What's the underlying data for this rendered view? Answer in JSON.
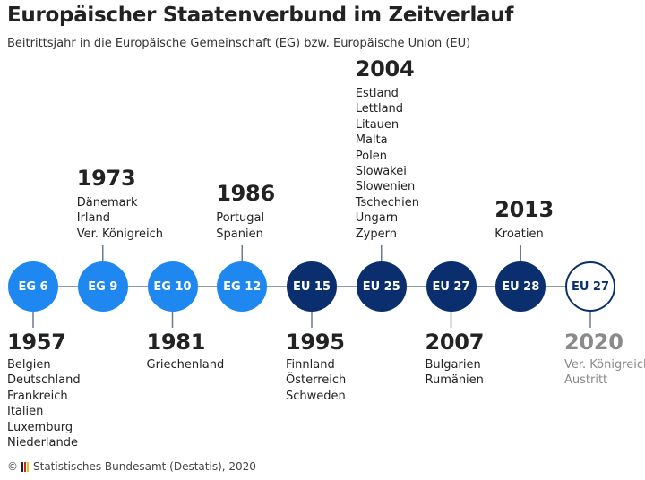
{
  "header": {
    "title": "Europäischer Staatenverbund im Zeitverlauf",
    "subtitle": "Beitrittsjahr in die Europäische Gemeinschaft (EG) bzw. Europäische Union (EU)"
  },
  "colors": {
    "eg": "#1e88f0",
    "eu": "#0b2f6e",
    "line": "#6b7a8c",
    "grey_text": "#8a8a8a",
    "flag": [
      "#222222",
      "#d9261c",
      "#f2c200"
    ]
  },
  "timeline": [
    {
      "label": "EG 6",
      "year": "1957",
      "type": "eg",
      "position": "below",
      "members": [
        "Belgien",
        "Deutschland",
        "Frankreich",
        "Italien",
        "Luxemburg",
        "Niederlande"
      ]
    },
    {
      "label": "EG 9",
      "year": "1973",
      "type": "eg",
      "position": "above",
      "members": [
        "Dänemark",
        "Irland",
        "Ver. Königreich"
      ]
    },
    {
      "label": "EG 10",
      "year": "1981",
      "type": "eg",
      "position": "below",
      "members": [
        "Griechenland"
      ]
    },
    {
      "label": "EG 12",
      "year": "1986",
      "type": "eg",
      "position": "above",
      "members": [
        "Portugal",
        "Spanien"
      ]
    },
    {
      "label": "EU 15",
      "year": "1995",
      "type": "eu",
      "position": "below",
      "members": [
        "Finnland",
        "Österreich",
        "Schweden"
      ]
    },
    {
      "label": "EU 25",
      "year": "2004",
      "type": "eu",
      "position": "above",
      "members": [
        "Estland",
        "Lettland",
        "Litauen",
        "Malta",
        "Polen",
        "Slowakei",
        "Slowenien",
        "Tschechien",
        "Ungarn",
        "Zypern"
      ]
    },
    {
      "label": "EU 27",
      "year": "2007",
      "type": "eu",
      "position": "below",
      "members": [
        "Bulgarien",
        "Rumänien"
      ]
    },
    {
      "label": "EU 28",
      "year": "2013",
      "type": "eu",
      "position": "above",
      "members": [
        "Kroatien"
      ]
    },
    {
      "label": "EU 27",
      "year": "2020",
      "type": "out",
      "position": "below",
      "members": [
        "Ver. Königreich",
        "Austritt"
      ]
    }
  ],
  "footer": {
    "copyright": "©",
    "source": "Statistisches Bundesamt (Destatis), 2020"
  }
}
